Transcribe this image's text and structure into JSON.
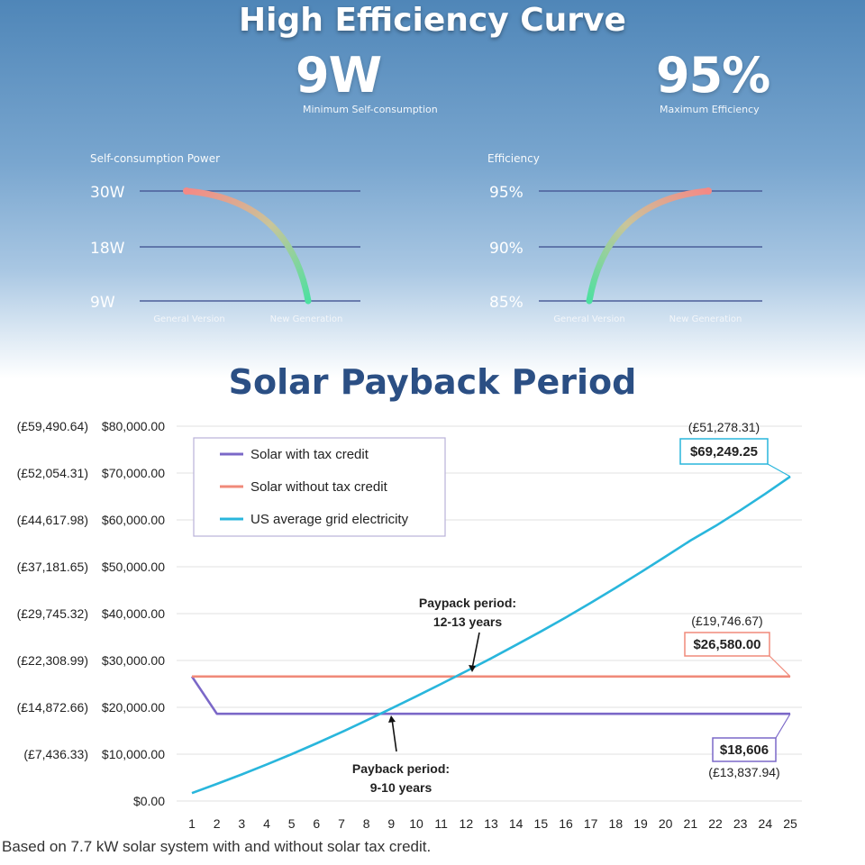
{
  "header": {
    "title": "High Efficiency Curve",
    "stat_left_value": "9W",
    "stat_left_caption": "Minimum Self-consumption",
    "stat_right_value": "95%",
    "stat_right_caption": "Maximum Efficiency"
  },
  "chart_data": [
    {
      "type": "line",
      "title": "Self-consumption Power",
      "y_ticks": [
        "30W",
        "18W",
        "9W"
      ],
      "categories": [
        "General Version",
        "New Generation"
      ],
      "series": [
        {
          "values": [
            30,
            9
          ]
        }
      ],
      "ylim": [
        9,
        30
      ]
    },
    {
      "type": "line",
      "title": "Efficiency",
      "y_ticks": [
        "95%",
        "90%",
        "85%"
      ],
      "categories": [
        "General Version",
        "New Generation"
      ],
      "series": [
        {
          "values": [
            85,
            95
          ]
        }
      ],
      "ylim": [
        85,
        95
      ]
    },
    {
      "type": "line",
      "title": "Solar Payback Period",
      "x": [
        1,
        2,
        3,
        4,
        5,
        6,
        7,
        8,
        9,
        10,
        11,
        12,
        13,
        14,
        15,
        16,
        17,
        18,
        19,
        20,
        21,
        22,
        23,
        24,
        25
      ],
      "xlim": [
        1,
        25
      ],
      "ylim": [
        0,
        80000
      ],
      "y_ticks": [
        "$0.00",
        "$10,000.00",
        "$20,000.00",
        "$30,000.00",
        "$40,000.00",
        "$50,000.00",
        "$60,000.00",
        "$70,000.00",
        "$80,000.00"
      ],
      "y_ticks_gbp": [
        "",
        "(£7,436.33)",
        "(£14,872.66)",
        "(£22,308.99)",
        "(£29,745.32)",
        "(£37,181.65)",
        "(£44,617.98)",
        "(£52,054.31)",
        "(£59,490.64)"
      ],
      "grid": true,
      "legend_position": "top-left",
      "series": [
        {
          "name": "Solar with tax credit",
          "color": "#7b68c8",
          "points": [
            [
              1,
              26580
            ],
            [
              2,
              18606
            ],
            [
              25,
              18606
            ]
          ]
        },
        {
          "name": "Solar without tax credit",
          "color": "#f08a7a",
          "points": [
            [
              1,
              26580
            ],
            [
              25,
              26580
            ]
          ]
        },
        {
          "name": "US average grid electricity",
          "color": "#29b6dc",
          "points": [
            [
              1,
              1700
            ],
            [
              2,
              3650
            ],
            [
              3,
              5680
            ],
            [
              4,
              7800
            ],
            [
              5,
              10000
            ],
            [
              6,
              12300
            ],
            [
              7,
              14700
            ],
            [
              8,
              17200
            ],
            [
              9,
              19750
            ],
            [
              10,
              22350
            ],
            [
              11,
              25000
            ],
            [
              12,
              27700
            ],
            [
              13,
              30450
            ],
            [
              14,
              33300
            ],
            [
              15,
              36200
            ],
            [
              16,
              39200
            ],
            [
              17,
              42300
            ],
            [
              18,
              45500
            ],
            [
              19,
              48800
            ],
            [
              20,
              52200
            ],
            [
              21,
              55600
            ],
            [
              22,
              58700
            ],
            [
              23,
              62050
            ],
            [
              24,
              65550
            ],
            [
              25,
              69249.25
            ]
          ]
        }
      ],
      "annotations": {
        "grid_end_value": "$69,249.25",
        "grid_end_gbp": "(£51,278.31)",
        "no_credit_value": "$26,580.00",
        "no_credit_gbp": "(£19,746.67)",
        "with_credit_value": "$18,606",
        "with_credit_gbp": "(£13,837.94)",
        "payback_no_credit_line1": "Paypack period:",
        "payback_no_credit_line2": "12-13 years",
        "payback_with_credit_line1": "Payback period:",
        "payback_with_credit_line2": "9-10 years"
      }
    }
  ],
  "footnote": "Based on 7.7 kW solar system with and without solar tax credit."
}
